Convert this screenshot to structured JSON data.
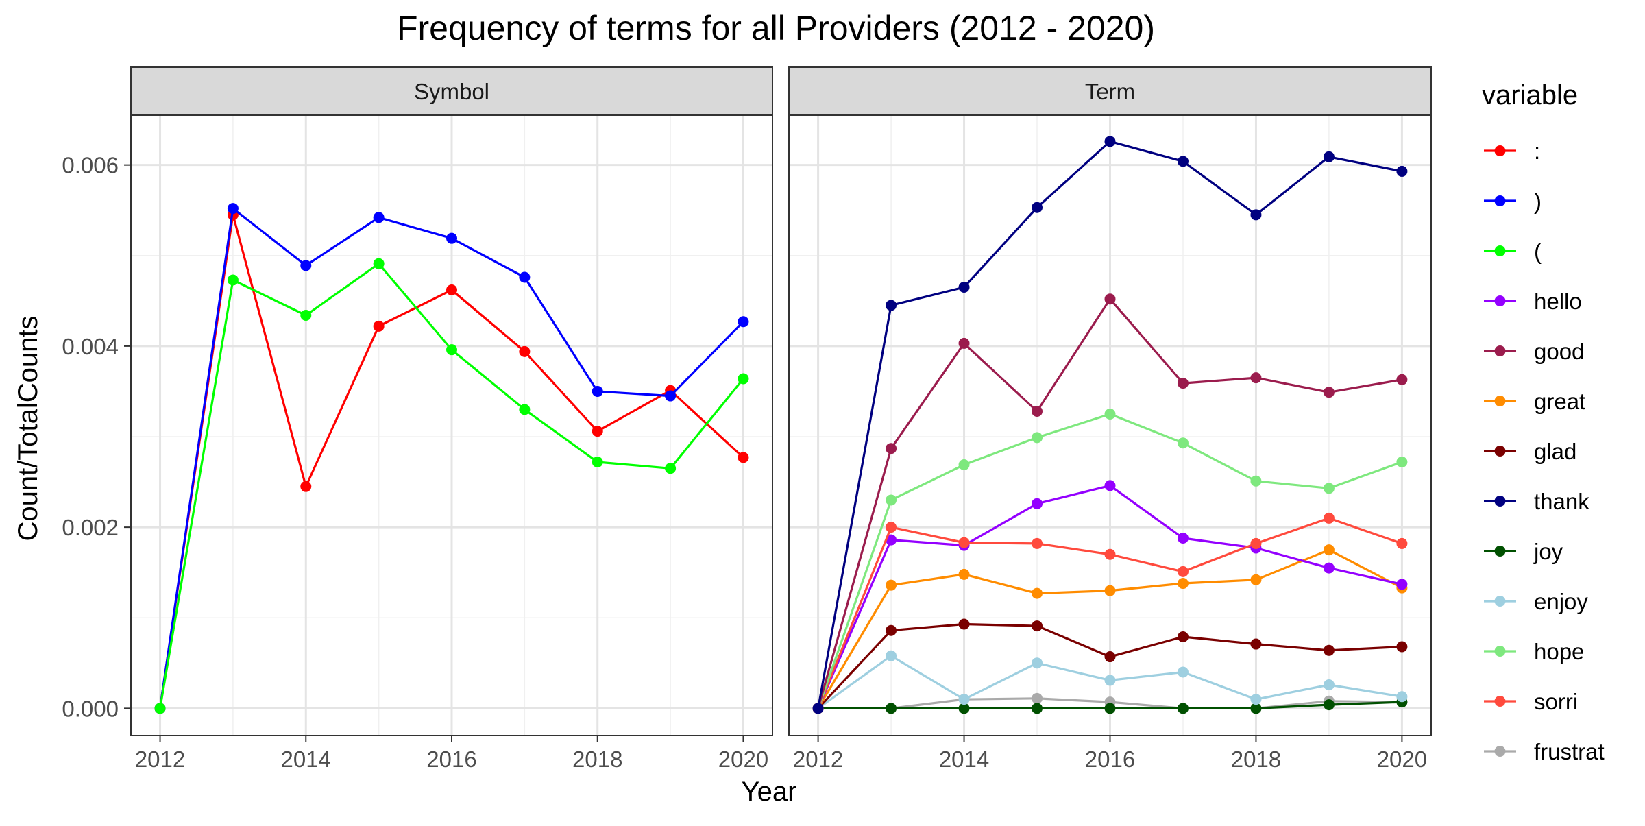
{
  "chart_data": {
    "type": "line",
    "title": "Frequency of terms for all Providers (2012 - 2020)",
    "xlabel": "Year",
    "ylabel": "Count/TotalCounts",
    "x": [
      2012,
      2013,
      2014,
      2015,
      2016,
      2017,
      2018,
      2019,
      2020
    ],
    "xticks": [
      2012,
      2014,
      2016,
      2018,
      2020
    ],
    "xlim": [
      2011.6,
      2020.4
    ],
    "yticks": [
      "0.000",
      "0.002",
      "0.004",
      "0.006"
    ],
    "ylim": [
      -0.0003,
      0.00655
    ],
    "grid": true,
    "legend": {
      "title": "variable",
      "position": "right"
    },
    "legend_order": [
      ":",
      ")",
      "(",
      "hello",
      "good",
      "great",
      "glad",
      "thank",
      "joy",
      "enjoy",
      "hope",
      "sorri",
      "frustrat"
    ],
    "colors": {
      ":": "#ff0000",
      ")": "#0000ff",
      "(": "#00ff00",
      "hello": "#9400ff",
      "good": "#9b1c4d",
      "great": "#ff8c00",
      "glad": "#7a0000",
      "thank": "#000080",
      "joy": "#005000",
      "enjoy": "#9ecfe0",
      "hope": "#7ee87e",
      "sorri": "#ff4a3d",
      "frustrat": "#aaaaaa"
    },
    "panels": [
      {
        "label": "Symbol",
        "series": [
          {
            "name": ":",
            "values": [
              0.0,
              0.00545,
              0.00245,
              0.00422,
              0.00462,
              0.00394,
              0.00306,
              0.00351,
              0.00277
            ]
          },
          {
            "name": ")",
            "values": [
              0.0,
              0.00552,
              0.00489,
              0.00542,
              0.00519,
              0.00476,
              0.0035,
              0.00345,
              0.00427
            ]
          },
          {
            "name": "(",
            "values": [
              0.0,
              0.00473,
              0.00434,
              0.00491,
              0.00396,
              0.0033,
              0.00272,
              0.00265,
              0.00364
            ]
          }
        ]
      },
      {
        "label": "Term",
        "series": [
          {
            "name": "frustrat",
            "values": [
              0.0,
              0.0,
              0.0001,
              0.00011,
              7e-05,
              0.0,
              0.0,
              8e-05,
              7e-05
            ]
          },
          {
            "name": "joy",
            "values": [
              0.0,
              0.0,
              0.0,
              0.0,
              0.0,
              0.0,
              0.0,
              4e-05,
              7e-05
            ]
          },
          {
            "name": "enjoy",
            "values": [
              0.0,
              0.00058,
              0.0001,
              0.0005,
              0.00031,
              0.0004,
              0.0001,
              0.00026,
              0.00013
            ]
          },
          {
            "name": "glad",
            "values": [
              0.0,
              0.00086,
              0.00093,
              0.00091,
              0.00057,
              0.00079,
              0.00071,
              0.00064,
              0.00068
            ]
          },
          {
            "name": "great",
            "values": [
              0.0,
              0.00136,
              0.00148,
              0.00127,
              0.0013,
              0.00138,
              0.00142,
              0.00175,
              0.00133
            ]
          },
          {
            "name": "hello",
            "values": [
              0.0,
              0.00186,
              0.0018,
              0.00226,
              0.00246,
              0.00188,
              0.00177,
              0.00155,
              0.00137
            ]
          },
          {
            "name": "sorri",
            "values": [
              0.0,
              0.002,
              0.00183,
              0.00182,
              0.0017,
              0.00151,
              0.00182,
              0.0021,
              0.00182
            ]
          },
          {
            "name": "hope",
            "values": [
              0.0,
              0.0023,
              0.00269,
              0.00299,
              0.00325,
              0.00293,
              0.00251,
              0.00243,
              0.00272
            ]
          },
          {
            "name": "good",
            "values": [
              0.0,
              0.00287,
              0.00403,
              0.00328,
              0.00452,
              0.00359,
              0.00365,
              0.00349,
              0.00363
            ]
          },
          {
            "name": "thank",
            "values": [
              0.0,
              0.00445,
              0.00465,
              0.00553,
              0.00626,
              0.00604,
              0.00545,
              0.00609,
              0.00593
            ]
          }
        ]
      }
    ]
  }
}
